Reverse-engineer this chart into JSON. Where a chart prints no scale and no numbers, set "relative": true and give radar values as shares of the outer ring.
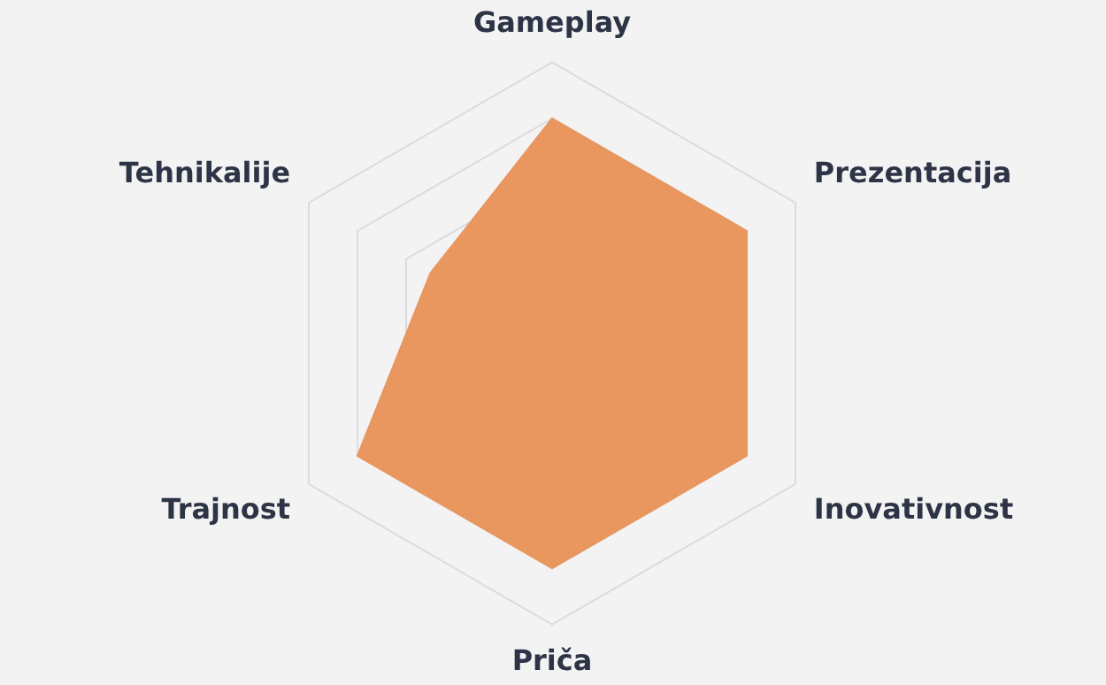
{
  "chart_data": {
    "type": "radar",
    "relative": true,
    "categories": [
      "Gameplay",
      "Prezentacija",
      "Inovativnost",
      "Priča",
      "Trajnost",
      "Tehnikalije"
    ],
    "series": [
      {
        "color": "#e9965f",
        "values": [
          0.8,
          0.8,
          0.8,
          0.8,
          0.8,
          0.5
        ]
      }
    ],
    "grid": true,
    "legend": false,
    "marker": "none"
  }
}
